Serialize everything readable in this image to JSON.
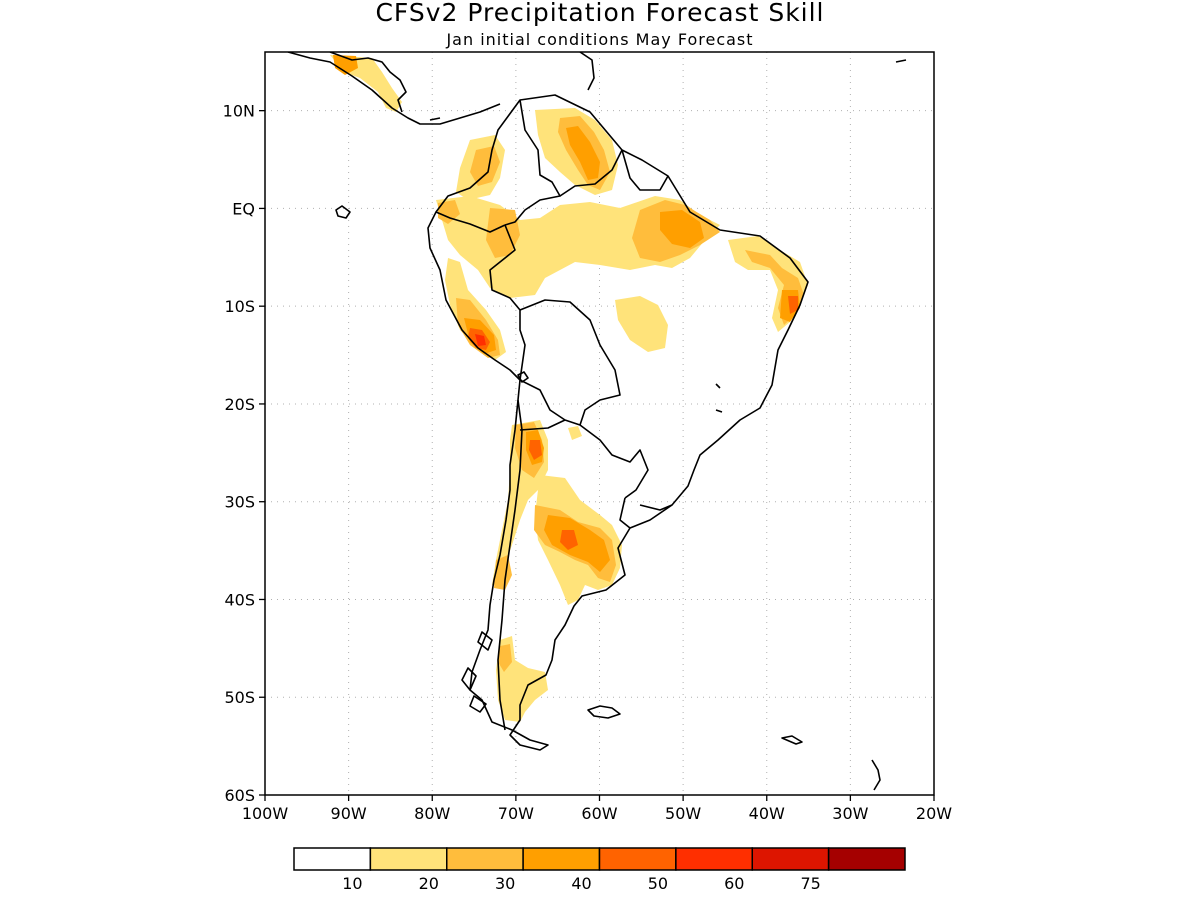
{
  "title": "CFSv2 Precipitation Forecast Skill",
  "subtitle": "Jan initial conditions  May Forecast",
  "map": {
    "lon_range": [
      -100,
      -20
    ],
    "lat_range": [
      -60,
      16
    ],
    "lat_ticks": [
      {
        "value": 10,
        "label": "10N"
      },
      {
        "value": 0,
        "label": "EQ"
      },
      {
        "value": -10,
        "label": "10S"
      },
      {
        "value": -20,
        "label": "20S"
      },
      {
        "value": -30,
        "label": "30S"
      },
      {
        "value": -40,
        "label": "40S"
      },
      {
        "value": -50,
        "label": "50S"
      },
      {
        "value": -60,
        "label": "60S"
      }
    ],
    "lon_ticks": [
      {
        "value": -100,
        "label": "100W"
      },
      {
        "value": -90,
        "label": "90W"
      },
      {
        "value": -80,
        "label": "80W"
      },
      {
        "value": -70,
        "label": "70W"
      },
      {
        "value": -60,
        "label": "60W"
      },
      {
        "value": -50,
        "label": "50W"
      },
      {
        "value": -40,
        "label": "40W"
      },
      {
        "value": -30,
        "label": "30W"
      },
      {
        "value": -20,
        "label": "20W"
      }
    ],
    "grid": "dotted"
  },
  "colorbar": {
    "colors": [
      "#ffffff",
      "#ffe37a",
      "#ffbd3c",
      "#ff9f00",
      "#ff6300",
      "#ff2f00",
      "#dd1500",
      "#a50000"
    ],
    "labels": [
      "10",
      "20",
      "30",
      "40",
      "50",
      "60",
      "75"
    ]
  },
  "colors": {
    "level_10_20": "#ffe37a",
    "level_20_30": "#ffbd3c",
    "level_30_40": "#ff9f00",
    "level_40_50": "#ff6300",
    "level_50_60": "#ff2f00",
    "coastline": "#000000",
    "grid": "#b0b0b0"
  }
}
